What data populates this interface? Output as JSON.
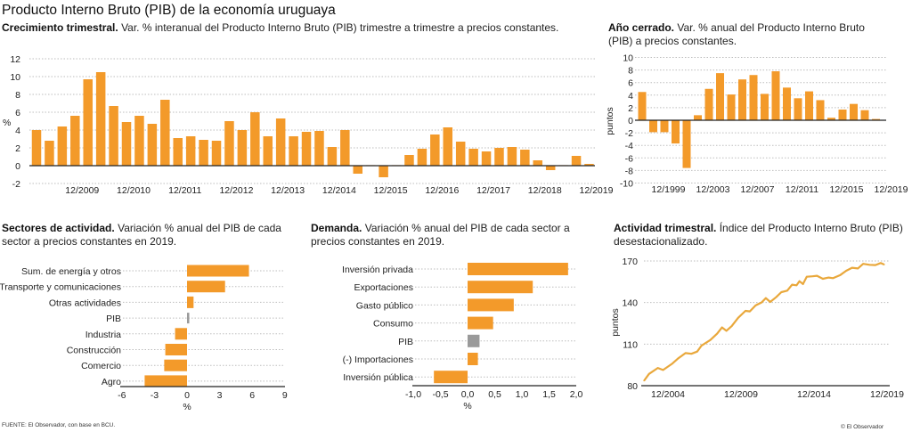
{
  "title": "Producto Interno Bruto (PIB) de la economía uruguaya",
  "source": "FUENTE: El Observador, con base en BCU.",
  "copyright": "© El Observador",
  "colors": {
    "bar": "#f39a2a",
    "pib_bar": "#9a9a9a",
    "line": "#e9a83c",
    "grid": "#bdbdbd",
    "axis": "#222222"
  },
  "chart_data": [
    {
      "id": "quarterly",
      "type": "bar",
      "title_bold": "Crecimiento trimestral.",
      "title": "Var. % interanual del Producto Interno Bruto (PIB) trimestre a trimestre a precios constantes.",
      "ylabel": "%",
      "ylim": [
        -2,
        12
      ],
      "yticks": [
        "12",
        "10",
        "8",
        "6",
        "4",
        "2",
        "0",
        "-2"
      ],
      "xticks": [
        "12/2009",
        "12/2010",
        "12/2011",
        "12/2012",
        "12/2013",
        "12/2014",
        "12/2015",
        "12/2016",
        "12/2017",
        "12/2018",
        "12/2019"
      ],
      "grid": true,
      "values": [
        4.0,
        2.8,
        4.4,
        5.6,
        9.7,
        10.5,
        6.7,
        4.9,
        5.6,
        4.7,
        7.4,
        3.1,
        3.3,
        2.9,
        2.8,
        5.0,
        4.0,
        6.0,
        3.3,
        5.3,
        3.3,
        3.8,
        3.9,
        2.1,
        4.0,
        -0.9,
        0.0,
        -1.3,
        0.0,
        1.2,
        1.9,
        3.5,
        4.3,
        2.7,
        1.9,
        1.6,
        2.0,
        2.1,
        1.8,
        0.6,
        -0.5,
        0.0,
        1.1,
        0.2
      ]
    },
    {
      "id": "annual",
      "type": "bar",
      "title_bold": "Año cerrado.",
      "title": "Var. % anual del Producto Interno Bruto (PIB) a precios constantes.",
      "ylabel": "puntos",
      "ylim": [
        -10,
        10
      ],
      "yticks": [
        "10",
        "8",
        "6",
        "4",
        "2",
        "0",
        "-2",
        "-4",
        "-6",
        "-8",
        "-10"
      ],
      "xticks": [
        "12/1999",
        "12/2003",
        "12/2007",
        "12/2011",
        "12/2015",
        "12/2019"
      ],
      "grid": true,
      "values": [
        4.5,
        -1.9,
        -1.9,
        -3.7,
        -7.6,
        0.8,
        5.0,
        7.5,
        4.1,
        6.5,
        7.2,
        4.2,
        7.8,
        5.2,
        3.5,
        4.6,
        3.2,
        0.4,
        1.7,
        2.6,
        1.6,
        0.2
      ]
    },
    {
      "id": "sectors",
      "type": "bar",
      "orientation": "horizontal",
      "title_bold": "Sectores de actividad.",
      "title": "Variación % anual del PIB de cada sector a precios constantes en 2019.",
      "xlabel": "%",
      "xlim": [
        -6,
        9
      ],
      "xticks": [
        "-6",
        "-3",
        "0",
        "3",
        "6",
        "9"
      ],
      "grid": true,
      "categories": [
        "Sum. de energía y otros",
        "Transporte y comunicaciones",
        "Otras actividades",
        "PIB",
        "Industria",
        "Construcción",
        "Comercio",
        "Agro"
      ],
      "values": [
        5.7,
        3.5,
        0.6,
        0.2,
        -1.1,
        -2.0,
        -2.1,
        -3.9
      ],
      "highlight": "PIB"
    },
    {
      "id": "demand",
      "type": "bar",
      "orientation": "horizontal",
      "title_bold": "Demanda.",
      "title": "Variación % anual del PIB de cada sector a precios constantes en 2019.",
      "xlabel": "%",
      "xlim": [
        -1.0,
        2.0
      ],
      "xticks": [
        "-1,0",
        "-0,5",
        "0,0",
        "0,5",
        "1,0",
        "1,5",
        "2,0"
      ],
      "grid": true,
      "categories": [
        "Inversión privada",
        "Exportaciones",
        "Gasto público",
        "Consumo",
        "PIB",
        "(-) Importaciones",
        "Inversión pública"
      ],
      "values": [
        1.85,
        1.2,
        0.85,
        0.47,
        0.22,
        0.19,
        -0.62
      ],
      "highlight": "PIB"
    },
    {
      "id": "activity",
      "type": "line",
      "title_bold": "Actividad trimestral.",
      "title": "Índice del Producto Interno Bruto (PIB) desestacionalizado.",
      "ylabel": "puntos",
      "ylim": [
        80,
        170
      ],
      "yticks": [
        "170",
        "140",
        "110",
        "80"
      ],
      "xticks": [
        "12/2004",
        "12/2009",
        "12/2014",
        "12/2019"
      ],
      "grid": true,
      "x": [
        2003.28,
        2003.62,
        2004.22,
        2004.58,
        2005.22,
        2005.62,
        2006.12,
        2006.52,
        2006.92,
        2007.22,
        2007.82,
        2008.28,
        2008.62,
        2008.92,
        2009.28,
        2009.72,
        2010.22,
        2010.52,
        2010.92,
        2011.32,
        2011.62,
        2011.92,
        2012.32,
        2012.68,
        2013.08,
        2013.42,
        2013.72,
        2013.92,
        2014.16,
        2014.42,
        2014.82,
        2015.12,
        2015.52,
        2015.92,
        2016.22,
        2016.72,
        2017.12,
        2017.52,
        2017.92,
        2018.28,
        2018.72,
        2019.12,
        2019.48,
        2019.72
      ],
      "y": [
        83.6,
        88.5,
        92.8,
        91.3,
        96.0,
        99.7,
        103.5,
        103.0,
        104.6,
        109.0,
        113.0,
        117.5,
        122.0,
        119.6,
        123.0,
        129.0,
        134.0,
        133.6,
        137.9,
        140.0,
        143.2,
        140.4,
        143.8,
        147.5,
        148.6,
        152.9,
        152.4,
        155.4,
        153.3,
        158.6,
        158.9,
        159.3,
        157.1,
        158.0,
        157.6,
        159.9,
        162.9,
        165.1,
        164.6,
        167.9,
        167.2,
        167.0,
        168.5,
        167.4
      ]
    }
  ]
}
